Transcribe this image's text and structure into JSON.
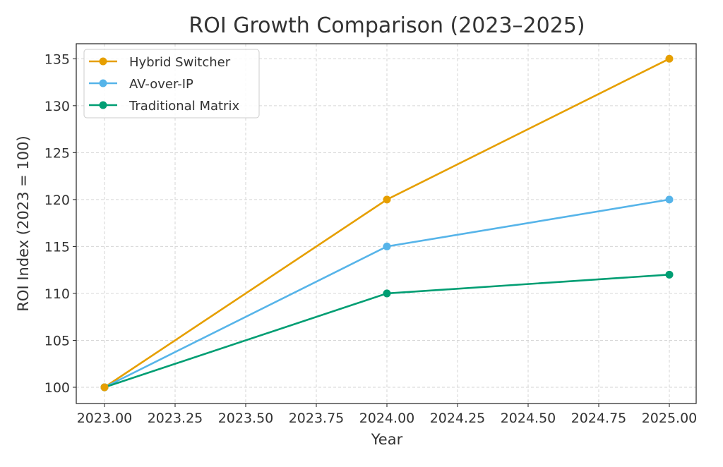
{
  "chart_data": {
    "type": "line",
    "title": "ROI Growth Comparison (2023–2025)",
    "xlabel": "Year",
    "ylabel": "ROI Index (2023 = 100)",
    "x": [
      2023,
      2024,
      2025
    ],
    "series": [
      {
        "name": "Hybrid Switcher",
        "values": [
          100,
          120,
          135
        ],
        "color": "#E69F00"
      },
      {
        "name": "AV-over-IP",
        "values": [
          100,
          115,
          120
        ],
        "color": "#56B4E9"
      },
      {
        "name": "Traditional Matrix",
        "values": [
          100,
          110,
          112
        ],
        "color": "#009E73"
      }
    ],
    "xticks": [
      2023.0,
      2023.25,
      2023.5,
      2023.75,
      2024.0,
      2024.25,
      2024.5,
      2024.75,
      2025.0
    ],
    "xtick_labels": [
      "2023.00",
      "2023.25",
      "2023.50",
      "2023.75",
      "2024.00",
      "2024.25",
      "2024.50",
      "2024.75",
      "2025.00"
    ],
    "yticks": [
      100,
      105,
      110,
      115,
      120,
      125,
      130,
      135
    ],
    "ytick_labels": [
      "100",
      "105",
      "110",
      "115",
      "120",
      "125",
      "130",
      "135"
    ],
    "xlim": [
      2022.9,
      2025.095
    ],
    "ylim": [
      98.27,
      136.6
    ],
    "grid": true,
    "legend": "top-left"
  }
}
